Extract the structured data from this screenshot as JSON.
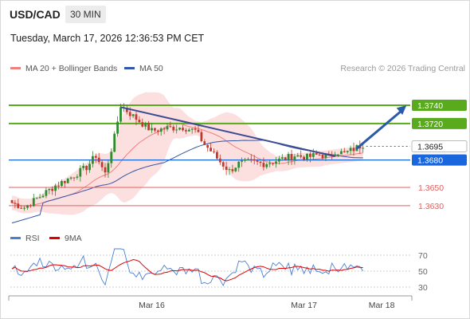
{
  "header": {
    "symbol": "USD/CAD",
    "timeframe": "30 MIN",
    "datetime": "Tuesday, March 17, 2026 12:36:53 PM CET"
  },
  "legend": {
    "ma20_label": "MA 20 + Bollinger Bands",
    "ma50_label": "MA 50",
    "credit": "Research © 2026 Trading Central"
  },
  "rsi_legend": {
    "rsi_label": "RSI",
    "ma_label": "9MA"
  },
  "colors": {
    "bull": "#2e8b2e",
    "bear": "#c0392b",
    "ma20": "#f08080",
    "ma50": "#3355aa",
    "band_fill": "#fbd7d7",
    "resistance": "#5aaa1e",
    "pivot": "#1a66dd",
    "support": "#e06060",
    "trendline": "#3c4a94",
    "arrow": "#2b5aa8",
    "rsi": "#4a7fd4",
    "rsi_ma": "#e00000"
  },
  "chart_data": {
    "type": "candlestick",
    "y_range": [
      1.3615,
      1.3768
    ],
    "x_ticks": [
      "Mar 16",
      "Mar 17",
      "Mar 18"
    ],
    "levels": [
      {
        "value": "1.3740",
        "kind": "resistance"
      },
      {
        "value": "1.3720",
        "kind": "resistance"
      },
      {
        "value": "1.3695",
        "kind": "current"
      },
      {
        "value": "1.3680",
        "kind": "pivot"
      },
      {
        "value": "1.3650",
        "kind": "support"
      },
      {
        "value": "1.3630",
        "kind": "support"
      }
    ],
    "last_price": 1.3695,
    "rsi_levels": [
      "70",
      "50",
      "30"
    ],
    "rsi_range": [
      20,
      80
    ],
    "price_path": [
      [
        0,
        1.3633
      ],
      [
        4,
        1.3628
      ],
      [
        9,
        1.364
      ],
      [
        14,
        1.3652
      ],
      [
        19,
        1.3661
      ],
      [
        24,
        1.3672
      ],
      [
        27,
        1.3685
      ],
      [
        30,
        1.3665
      ],
      [
        33,
        1.3705
      ],
      [
        35,
        1.374
      ],
      [
        39,
        1.3728
      ],
      [
        42,
        1.372
      ],
      [
        45,
        1.3712
      ],
      [
        50,
        1.3715
      ],
      [
        55,
        1.3716
      ],
      [
        59,
        1.3712
      ],
      [
        62,
        1.3697
      ],
      [
        64,
        1.369
      ],
      [
        67,
        1.3678
      ],
      [
        70,
        1.3668
      ],
      [
        73,
        1.3676
      ],
      [
        77,
        1.3678
      ],
      [
        81,
        1.3676
      ],
      [
        86,
        1.368
      ],
      [
        91,
        1.3685
      ],
      [
        95,
        1.3683
      ],
      [
        99,
        1.3686
      ],
      [
        102,
        1.3683
      ],
      [
        104,
        1.369
      ],
      [
        107,
        1.3687
      ],
      [
        110,
        1.3692
      ],
      [
        113,
        1.3697
      ]
    ],
    "candle_count": 114,
    "trendline": {
      "from": [
        35,
        1.3738
      ],
      "to": [
        104,
        1.3684
      ]
    },
    "forecast_arrow": {
      "from": [
        110,
        1.3692
      ],
      "to": [
        127,
        1.374
      ]
    }
  }
}
